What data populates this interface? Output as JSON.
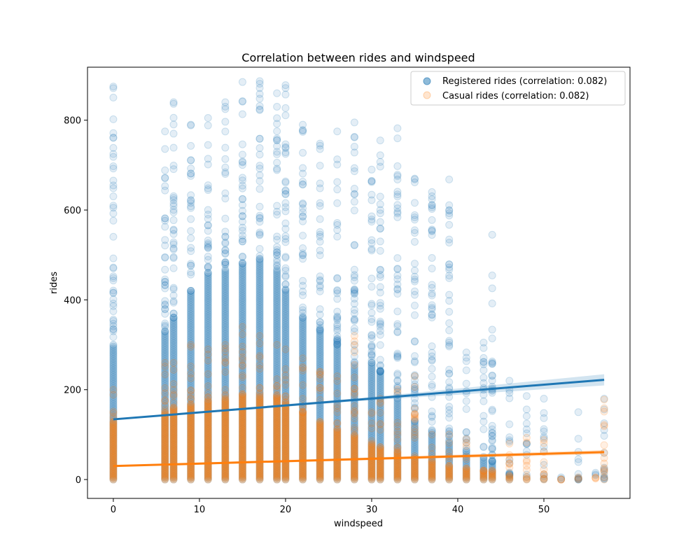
{
  "chart_data": {
    "type": "scatter",
    "title": "Correlation between rides and windspeed",
    "xlabel": "windspeed",
    "ylabel": "rides",
    "xlim": [
      -3,
      60
    ],
    "ylim": [
      -42,
      918
    ],
    "xticks": [
      0,
      10,
      20,
      30,
      40,
      50
    ],
    "yticks": [
      0,
      200,
      400,
      600,
      800
    ],
    "grid": false,
    "legend_position": "top-right",
    "windspeed_values": [
      0,
      6,
      7,
      9,
      11,
      13,
      15,
      17,
      19,
      20,
      22,
      24,
      26,
      28,
      30,
      31,
      33,
      35,
      37,
      39,
      41,
      43,
      44,
      46,
      48,
      50,
      52,
      54,
      56,
      57
    ],
    "series": [
      {
        "name": "Registered rides (correlation:  0.082)",
        "color": "#1f77b4",
        "column_max": [
          875,
          775,
          840,
          790,
          805,
          840,
          885,
          887,
          860,
          878,
          790,
          748,
          775,
          795,
          690,
          755,
          782,
          670,
          640,
          668,
          283,
          305,
          545,
          220,
          186,
          180,
          5,
          150,
          15,
          180
        ],
        "column_dense_max": [
          300,
          330,
          360,
          420,
          460,
          470,
          480,
          490,
          470,
          420,
          360,
          330,
          300,
          250,
          260,
          240,
          180,
          130,
          110,
          90,
          60,
          50,
          40,
          10,
          0,
          0,
          0,
          0,
          0,
          0
        ],
        "fit_line": {
          "x": [
            0,
            57
          ],
          "y": [
            134,
            222
          ]
        }
      },
      {
        "name": "Casual rides (correlation:  0.082)",
        "color": "#ff7f0e",
        "column_max": [
          200,
          260,
          260,
          300,
          290,
          300,
          340,
          320,
          300,
          290,
          270,
          240,
          230,
          320,
          150,
          180,
          200,
          230,
          100,
          100,
          90,
          20,
          20,
          80,
          93,
          88,
          0,
          5,
          5,
          178
        ],
        "column_dense_max": [
          130,
          150,
          160,
          170,
          175,
          180,
          190,
          185,
          180,
          170,
          150,
          130,
          110,
          100,
          80,
          70,
          60,
          50,
          40,
          30,
          25,
          20,
          15,
          10,
          5,
          5,
          0,
          0,
          0,
          0
        ],
        "fit_line": {
          "x": [
            0,
            57
          ],
          "y": [
            30,
            61
          ]
        }
      }
    ]
  }
}
